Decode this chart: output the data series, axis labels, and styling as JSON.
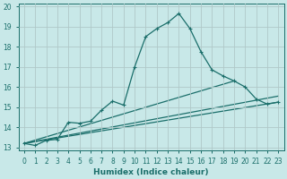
{
  "xlabel": "Humidex (Indice chaleur)",
  "ylabel": "",
  "background_color": "#c8e8e8",
  "grid_color": "#b0c8c8",
  "line_color": "#1a6e6a",
  "xlim_min": -0.5,
  "xlim_max": 23.5,
  "ylim_min": 12.85,
  "ylim_max": 20.15,
  "yticks": [
    13,
    14,
    15,
    16,
    17,
    18,
    19,
    20
  ],
  "xticks": [
    0,
    1,
    2,
    3,
    4,
    5,
    6,
    7,
    8,
    9,
    10,
    11,
    12,
    13,
    14,
    15,
    16,
    17,
    18,
    19,
    20,
    21,
    22,
    23
  ],
  "series1_x": [
    0,
    1,
    2,
    3,
    4,
    5,
    6,
    7,
    8,
    9,
    10,
    11,
    12,
    13,
    14,
    15,
    16,
    17,
    18,
    19,
    20,
    21,
    22,
    23
  ],
  "series1_y": [
    13.2,
    13.1,
    13.35,
    13.4,
    14.25,
    14.2,
    14.3,
    14.85,
    15.3,
    15.1,
    17.0,
    18.5,
    18.9,
    19.2,
    19.65,
    18.9,
    17.75,
    16.85,
    16.55,
    16.3,
    16.0,
    15.4,
    15.15,
    15.25
  ],
  "trend1_x": [
    0,
    23
  ],
  "trend1_y": [
    13.2,
    15.25
  ],
  "trend2_x": [
    0,
    23
  ],
  "trend2_y": [
    13.2,
    15.55
  ],
  "trend3_x": [
    0,
    19
  ],
  "trend3_y": [
    13.2,
    16.3
  ]
}
